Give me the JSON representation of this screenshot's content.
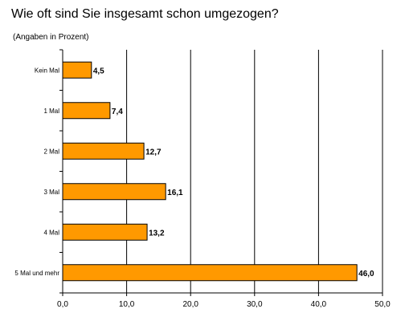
{
  "chart_data": {
    "type": "bar",
    "orientation": "horizontal",
    "title": "Wie oft sind Sie insgesamt schon umgezogen?",
    "subtitle": "(Angaben in Prozent)",
    "categories": [
      "Kein Mal",
      "1 Mal",
      "2 Mal",
      "3 Mal",
      "4 Mal",
      "5 Mal und mehr"
    ],
    "values": [
      4.5,
      7.4,
      12.7,
      16.1,
      13.2,
      46.0
    ],
    "value_labels": [
      "4,5",
      "7,4",
      "12,7",
      "16,1",
      "13,2",
      "46,0"
    ],
    "xlim": [
      0,
      50
    ],
    "ticks": [
      0,
      10,
      20,
      30,
      40,
      50
    ],
    "tick_labels": [
      "0,0",
      "10,0",
      "20,0",
      "30,0",
      "40,0",
      "50,0"
    ],
    "grid": "vertical",
    "legend": "none",
    "colors": {
      "bar": "#FF9900",
      "bar_border": "#000000",
      "grid": "#000000"
    }
  }
}
